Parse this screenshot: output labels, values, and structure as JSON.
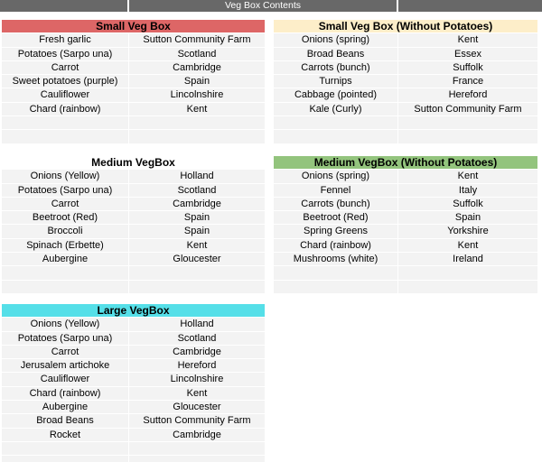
{
  "title_bar": {
    "title": "Veg Box Contents",
    "bar_color": "#686868",
    "text_color": "#ffffff"
  },
  "colors": {
    "row_fill": "#f3f3f3",
    "background": "#ffffff"
  },
  "tables": [
    {
      "id": "small-box",
      "title": "Small Veg Box",
      "header_bg": "#dd6666",
      "column": "left",
      "columns": [
        "item",
        "origin"
      ],
      "rows": [
        [
          "Fresh garlic",
          "Sutton Community Farm"
        ],
        [
          "Potatoes (Sarpo una)",
          "Scotland"
        ],
        [
          "Carrot",
          "Cambridge"
        ],
        [
          "Sweet potatoes (purple)",
          "Spain"
        ],
        [
          "Cauliflower",
          "Lincolnshire"
        ],
        [
          "Chard (rainbow)",
          "Kent"
        ]
      ],
      "trailing_empty_rows": 2
    },
    {
      "id": "small-box-wp",
      "title": "Small Veg Box (Without Potatoes)",
      "header_bg": "#fdeec9",
      "column": "right",
      "columns": [
        "item",
        "origin"
      ],
      "rows": [
        [
          "Onions (spring)",
          "Kent"
        ],
        [
          "Broad Beans",
          "Essex"
        ],
        [
          "Carrots (bunch)",
          "Suffolk"
        ],
        [
          "Turnips",
          "France"
        ],
        [
          "Cabbage (pointed)",
          "Hereford"
        ],
        [
          "Kale (Curly)",
          "Sutton Community Farm"
        ]
      ],
      "trailing_empty_rows": 2
    },
    {
      "id": "medium-box",
      "title": "Medium VegBox",
      "header_bg": "#ffffff",
      "column": "left",
      "columns": [
        "item",
        "origin"
      ],
      "rows": [
        [
          "Onions (Yellow)",
          "Holland"
        ],
        [
          "Potatoes (Sarpo una)",
          "Scotland"
        ],
        [
          "Carrot",
          "Cambridge"
        ],
        [
          "Beetroot (Red)",
          "Spain"
        ],
        [
          "Broccoli",
          "Spain"
        ],
        [
          "Spinach (Erbette)",
          "Kent"
        ],
        [
          "Aubergine",
          "Gloucester"
        ]
      ],
      "trailing_empty_rows": 2
    },
    {
      "id": "medium-box-wp",
      "title": "Medium VegBox (Without Potatoes)",
      "header_bg": "#93c47d",
      "column": "right",
      "columns": [
        "item",
        "origin"
      ],
      "rows": [
        [
          "Onions (spring)",
          "Kent"
        ],
        [
          "Fennel",
          "Italy"
        ],
        [
          "Carrots (bunch)",
          "Suffolk"
        ],
        [
          "Beetroot (Red)",
          "Spain"
        ],
        [
          "Spring Greens",
          "Yorkshire"
        ],
        [
          "Chard (rainbow)",
          "Kent"
        ],
        [
          "Mushrooms (white)",
          "Ireland"
        ]
      ],
      "trailing_empty_rows": 2
    },
    {
      "id": "large-box",
      "title": "Large VegBox",
      "header_bg": "#55dfe8",
      "column": "left",
      "columns": [
        "item",
        "origin"
      ],
      "rows": [
        [
          "Onions (Yellow)",
          "Holland"
        ],
        [
          "Potatoes (Sarpo una)",
          "Scotland"
        ],
        [
          "Carrot",
          "Cambridge"
        ],
        [
          "Jerusalem artichoke",
          "Hereford"
        ],
        [
          "Cauliflower",
          "Lincolnshire"
        ],
        [
          "Chard (rainbow)",
          "Kent"
        ],
        [
          "Aubergine",
          "Gloucester"
        ],
        [
          "Broad Beans",
          "Sutton Community Farm"
        ],
        [
          "Rocket",
          "Cambridge"
        ]
      ],
      "trailing_empty_rows": 2
    }
  ]
}
